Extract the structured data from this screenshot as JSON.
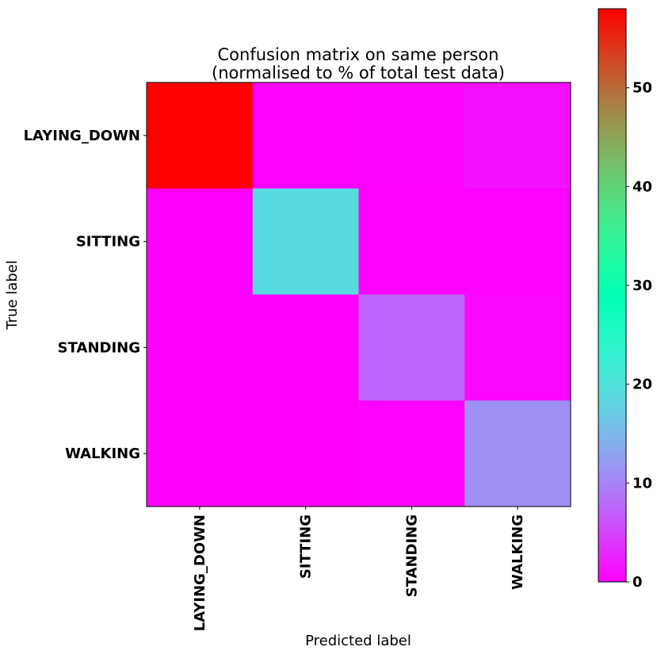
{
  "chart_data": {
    "type": "heatmap",
    "title": [
      "Confusion matrix on same person",
      "(normalised to % of total test data)"
    ],
    "xlabel": "Predicted label",
    "ylabel": "True label",
    "x_categories": [
      "LAYING_DOWN",
      "SITTING",
      "STANDING",
      "WALKING"
    ],
    "y_categories": [
      "LAYING_DOWN",
      "SITTING",
      "STANDING",
      "WALKING"
    ],
    "values": [
      [
        58.0,
        0.2,
        0.3,
        1.2
      ],
      [
        0.0,
        19.0,
        0.1,
        0.1
      ],
      [
        0.0,
        0.0,
        7.5,
        0.4
      ],
      [
        0.0,
        0.0,
        0.2,
        11.0
      ]
    ],
    "colormap": "rainbow",
    "colorbar": {
      "range": [
        0,
        58
      ],
      "ticks": [
        0,
        10,
        20,
        30,
        40,
        50
      ]
    }
  }
}
